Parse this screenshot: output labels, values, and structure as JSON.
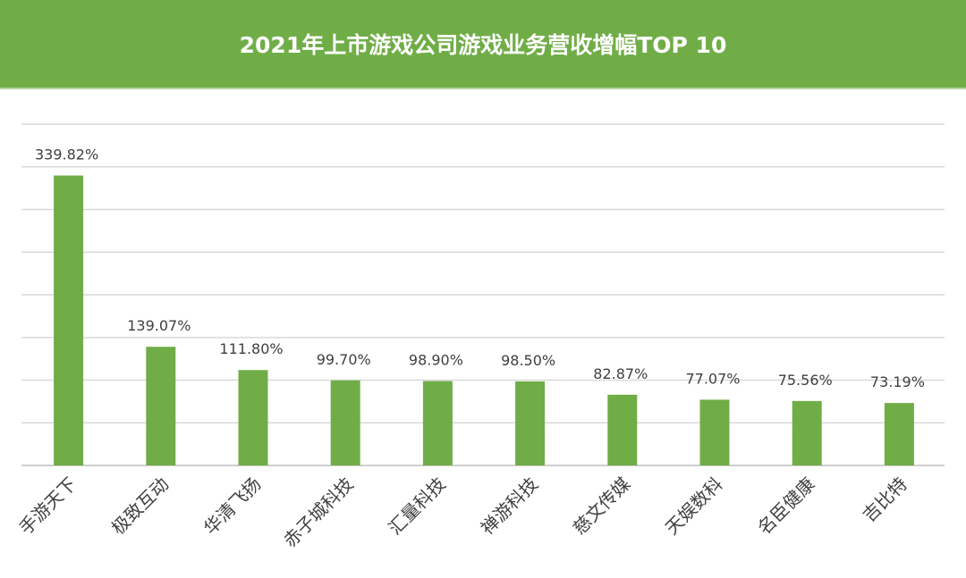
{
  "header": {
    "title": "2021年上市游戏公司游戏业务营收增幅TOP 10"
  },
  "colors": {
    "header_bg": "#70ad47",
    "bar": "#70ad47",
    "grid": "#d9d9d9",
    "axis": "#bfbfbf",
    "text": "#404040"
  },
  "chart_data": {
    "type": "bar",
    "title": "2021年上市游戏公司游戏业务营收增幅TOP 10",
    "xlabel": "",
    "ylabel": "",
    "categories": [
      "手游天下",
      "极致互动",
      "华清飞扬",
      "赤子城科技",
      "汇量科技",
      "禅游科技",
      "慈文传媒",
      "天娱数科",
      "名臣健康",
      "吉比特"
    ],
    "values": [
      339.82,
      139.07,
      111.8,
      99.7,
      98.9,
      98.5,
      82.87,
      77.07,
      75.56,
      73.19
    ],
    "data_labels": [
      "339.82%",
      "139.07%",
      "111.80%",
      "99.70%",
      "98.90%",
      "98.50%",
      "82.87%",
      "77.07%",
      "75.56%",
      "73.19%"
    ],
    "ylim": [
      0,
      400
    ],
    "y_gridline_step": 50,
    "grid": true,
    "legend": "none",
    "x_tick_rotation": -45
  }
}
